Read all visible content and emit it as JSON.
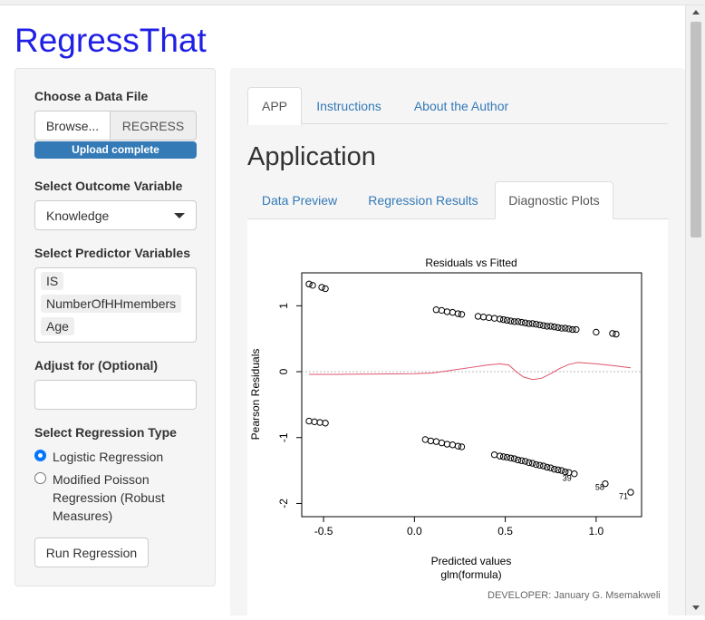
{
  "app": {
    "title": "RegressThat",
    "developer": "DEVELOPER: January G. Msemakweli"
  },
  "sidebar": {
    "data_file": {
      "label": "Choose a Data File",
      "browse_label": "Browse...",
      "file_name": "REGRESS",
      "progress_text": "Upload complete",
      "progress_fraction": 1.0
    },
    "outcome": {
      "label": "Select Outcome Variable",
      "value": "Knowledge"
    },
    "predictors": {
      "label": "Select Predictor Variables",
      "items": [
        "IS",
        "NumberOfHHmembers",
        "Age"
      ]
    },
    "adjust": {
      "label": "Adjust for (Optional)",
      "value": ""
    },
    "regression_type": {
      "label": "Select Regression Type",
      "options": [
        {
          "label": "Logistic Regression",
          "checked": true
        },
        {
          "label": "Modified Poisson Regression (Robust Measures)",
          "checked": false
        }
      ]
    },
    "run_label": "Run Regression"
  },
  "main": {
    "tabs": [
      "APP",
      "Instructions",
      "About the Author"
    ],
    "active_tab": "APP",
    "heading": "Application",
    "subtabs": [
      "Data Preview",
      "Regression Results",
      "Diagnostic Plots"
    ],
    "active_subtab": "Diagnostic Plots"
  },
  "chart_data": {
    "type": "scatter",
    "title": "Residuals vs Fitted",
    "xlabel": "Predicted values",
    "xlabel2": "glm(formula)",
    "ylabel": "Pearson Residuals",
    "xlim": [
      -0.62,
      1.25
    ],
    "ylim": [
      -2.2,
      1.5
    ],
    "xticks": [
      -0.5,
      0.0,
      0.5,
      1.0
    ],
    "xtick_labels": [
      "-0.5",
      "0.0",
      "0.5",
      "1.0"
    ],
    "yticks": [
      -2,
      -1,
      0,
      1
    ],
    "ytick_labels": [
      "-2",
      "-1",
      "0",
      "1"
    ],
    "grid": false,
    "point_color": "#000000",
    "smooth_color": "#df536b",
    "points": [
      [
        -0.58,
        1.33
      ],
      [
        -0.56,
        1.31
      ],
      [
        -0.51,
        1.28
      ],
      [
        -0.49,
        1.26
      ],
      [
        0.12,
        0.94
      ],
      [
        0.15,
        0.93
      ],
      [
        0.18,
        0.91
      ],
      [
        0.21,
        0.9
      ],
      [
        0.24,
        0.88
      ],
      [
        0.26,
        0.87
      ],
      [
        0.35,
        0.84
      ],
      [
        0.38,
        0.83
      ],
      [
        0.41,
        0.82
      ],
      [
        0.44,
        0.81
      ],
      [
        0.47,
        0.8
      ],
      [
        0.49,
        0.79
      ],
      [
        0.51,
        0.78
      ],
      [
        0.53,
        0.77
      ],
      [
        0.55,
        0.76
      ],
      [
        0.57,
        0.76
      ],
      [
        0.59,
        0.75
      ],
      [
        0.61,
        0.74
      ],
      [
        0.63,
        0.73
      ],
      [
        0.65,
        0.73
      ],
      [
        0.67,
        0.72
      ],
      [
        0.69,
        0.71
      ],
      [
        0.71,
        0.7
      ],
      [
        0.73,
        0.69
      ],
      [
        0.75,
        0.69
      ],
      [
        0.77,
        0.68
      ],
      [
        0.79,
        0.67
      ],
      [
        0.81,
        0.66
      ],
      [
        0.83,
        0.66
      ],
      [
        0.85,
        0.65
      ],
      [
        0.87,
        0.64
      ],
      [
        0.89,
        0.64
      ],
      [
        1.0,
        0.6
      ],
      [
        1.09,
        0.58
      ],
      [
        1.11,
        0.57
      ],
      [
        -0.58,
        -0.75
      ],
      [
        -0.55,
        -0.76
      ],
      [
        -0.52,
        -0.77
      ],
      [
        -0.49,
        -0.78
      ],
      [
        0.06,
        -1.03
      ],
      [
        0.09,
        -1.05
      ],
      [
        0.12,
        -1.06
      ],
      [
        0.15,
        -1.08
      ],
      [
        0.18,
        -1.1
      ],
      [
        0.21,
        -1.11
      ],
      [
        0.24,
        -1.13
      ],
      [
        0.26,
        -1.14
      ],
      [
        0.44,
        -1.26
      ],
      [
        0.47,
        -1.28
      ],
      [
        0.49,
        -1.29
      ],
      [
        0.51,
        -1.3
      ],
      [
        0.53,
        -1.31
      ],
      [
        0.55,
        -1.32
      ],
      [
        0.57,
        -1.34
      ],
      [
        0.59,
        -1.35
      ],
      [
        0.61,
        -1.36
      ],
      [
        0.63,
        -1.38
      ],
      [
        0.65,
        -1.39
      ],
      [
        0.67,
        -1.41
      ],
      [
        0.69,
        -1.42
      ],
      [
        0.71,
        -1.43
      ],
      [
        0.73,
        -1.45
      ],
      [
        0.75,
        -1.46
      ],
      [
        0.77,
        -1.48
      ],
      [
        0.79,
        -1.49
      ],
      [
        0.81,
        -1.5
      ],
      [
        0.83,
        -1.52
      ],
      [
        0.85,
        -1.53
      ],
      [
        0.88,
        -1.55
      ],
      [
        1.05,
        -1.7
      ],
      [
        1.19,
        -1.83
      ]
    ],
    "labels": [
      {
        "x": 0.84,
        "y": -1.6,
        "text": "39"
      },
      {
        "x": 1.02,
        "y": -1.74,
        "text": "58"
      },
      {
        "x": 1.15,
        "y": -1.88,
        "text": "71"
      }
    ],
    "smooth_line": [
      [
        -0.58,
        -0.04
      ],
      [
        -0.4,
        -0.04
      ],
      [
        -0.2,
        -0.035
      ],
      [
        0.0,
        -0.03
      ],
      [
        0.1,
        -0.02
      ],
      [
        0.2,
        0.02
      ],
      [
        0.3,
        0.06
      ],
      [
        0.4,
        0.1
      ],
      [
        0.47,
        0.12
      ],
      [
        0.52,
        0.1
      ],
      [
        0.56,
        0.0
      ],
      [
        0.6,
        -0.08
      ],
      [
        0.65,
        -0.12
      ],
      [
        0.7,
        -0.1
      ],
      [
        0.75,
        -0.03
      ],
      [
        0.8,
        0.05
      ],
      [
        0.85,
        0.11
      ],
      [
        0.9,
        0.14
      ],
      [
        1.0,
        0.12
      ],
      [
        1.1,
        0.09
      ],
      [
        1.19,
        0.06
      ]
    ]
  }
}
